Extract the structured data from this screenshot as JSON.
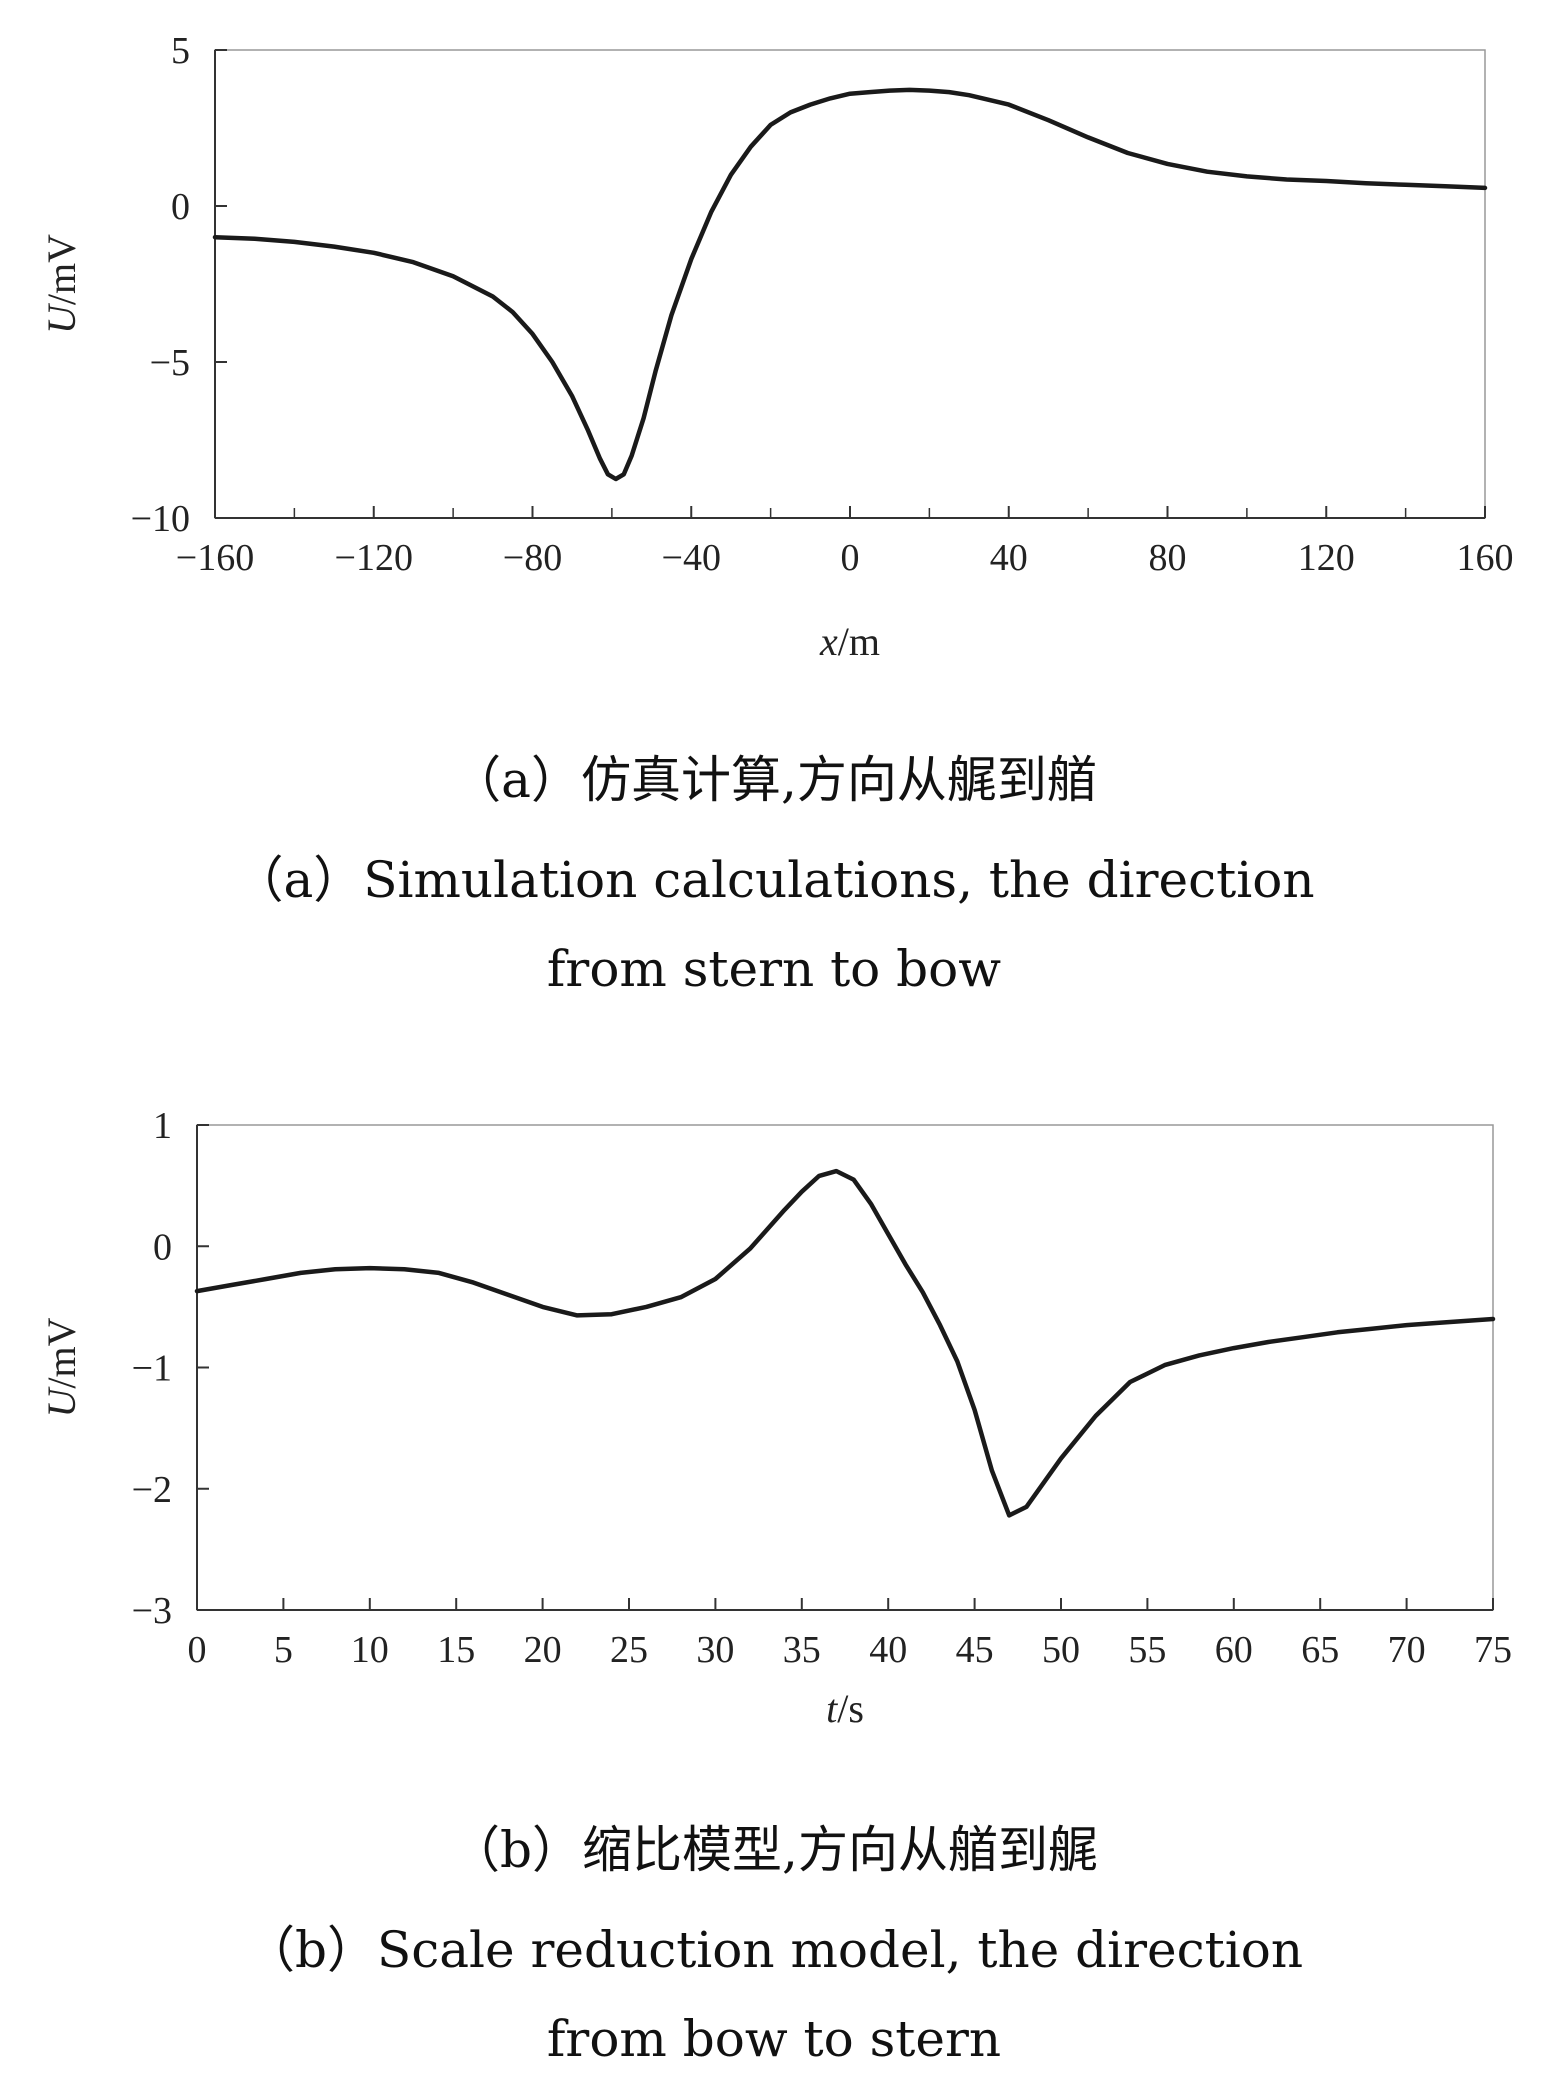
{
  "chart_data": [
    {
      "type": "line",
      "xlabel": "x/m",
      "ylabel": "U/mV",
      "xlim": [
        -160,
        160
      ],
      "ylim": [
        -10,
        5
      ],
      "xticks": [
        -160,
        -120,
        -80,
        -40,
        0,
        40,
        80,
        120,
        160
      ],
      "xtick_labels": [
        "−160",
        "−120",
        "−80",
        "−40",
        "0",
        "40",
        "80",
        "120",
        "160"
      ],
      "yticks": [
        5,
        0,
        -5,
        -10
      ],
      "ytick_labels": [
        "5",
        "0",
        "−5",
        "−10"
      ],
      "grid": false,
      "series": [
        {
          "x": [
            -160,
            -150,
            -140,
            -130,
            -120,
            -110,
            -100,
            -90,
            -85,
            -80,
            -75,
            -70,
            -66,
            -63,
            -61,
            -59,
            -57,
            -55,
            -52,
            -49,
            -45,
            -40,
            -35,
            -30,
            -25,
            -20,
            -15,
            -10,
            -5,
            0,
            5,
            10,
            15,
            20,
            25,
            30,
            40,
            50,
            60,
            70,
            80,
            90,
            100,
            110,
            120,
            130,
            140,
            150,
            160
          ],
          "y": [
            -1.0,
            -1.05,
            -1.15,
            -1.3,
            -1.5,
            -1.8,
            -2.25,
            -2.9,
            -3.4,
            -4.1,
            -5.0,
            -6.1,
            -7.2,
            -8.1,
            -8.6,
            -8.75,
            -8.6,
            -8.0,
            -6.8,
            -5.3,
            -3.5,
            -1.7,
            -0.2,
            1.0,
            1.9,
            2.6,
            3.0,
            3.25,
            3.45,
            3.6,
            3.65,
            3.7,
            3.72,
            3.7,
            3.65,
            3.55,
            3.25,
            2.75,
            2.2,
            1.7,
            1.35,
            1.1,
            0.95,
            0.85,
            0.8,
            0.73,
            0.68,
            0.63,
            0.58
          ]
        }
      ]
    },
    {
      "type": "line",
      "xlabel": "t/s",
      "ylabel": "U/mV",
      "xlim": [
        0,
        75
      ],
      "ylim": [
        -3,
        1
      ],
      "xticks": [
        0,
        5,
        10,
        15,
        20,
        25,
        30,
        35,
        40,
        45,
        50,
        55,
        60,
        65,
        70,
        75
      ],
      "xtick_labels": [
        "0",
        "5",
        "10",
        "15",
        "20",
        "25",
        "30",
        "35",
        "40",
        "45",
        "50",
        "55",
        "60",
        "65",
        "70",
        "75"
      ],
      "yticks": [
        1,
        0,
        -1,
        -2,
        -3
      ],
      "ytick_labels": [
        "1",
        "0",
        "−1",
        "−2",
        "−3"
      ],
      "grid": false,
      "series": [
        {
          "x": [
            0,
            2,
            4,
            6,
            8,
            10,
            12,
            14,
            16,
            18,
            20,
            22,
            24,
            26,
            28,
            30,
            32,
            34,
            35,
            36,
            37,
            38,
            39,
            40,
            41,
            42,
            43,
            44,
            45,
            46,
            47,
            48,
            49,
            50,
            52,
            54,
            56,
            58,
            60,
            62,
            64,
            66,
            68,
            70,
            72,
            75
          ],
          "y": [
            -0.37,
            -0.32,
            -0.27,
            -0.22,
            -0.19,
            -0.18,
            -0.19,
            -0.22,
            -0.3,
            -0.4,
            -0.5,
            -0.57,
            -0.56,
            -0.5,
            -0.42,
            -0.27,
            -0.02,
            0.3,
            0.45,
            0.58,
            0.62,
            0.55,
            0.35,
            0.1,
            -0.15,
            -0.38,
            -0.65,
            -0.95,
            -1.35,
            -1.85,
            -2.22,
            -2.15,
            -1.95,
            -1.75,
            -1.4,
            -1.12,
            -0.98,
            -0.9,
            -0.84,
            -0.79,
            -0.75,
            -0.71,
            -0.68,
            -0.65,
            -0.63,
            -0.6
          ]
        }
      ]
    }
  ],
  "captions": {
    "a_cn": "（a）仿真计算,方向从艉到艏",
    "a_en_line1": "（a）Simulation calculations, the direction",
    "a_en_line2": "from stern to bow",
    "b_cn": "（b）缩比模型,方向从艏到艉",
    "b_en_line1": "（b）Scale reduction model, the direction",
    "b_en_line2": "from bow to stern"
  },
  "colors": {
    "line": "#1a1a1a",
    "frame": "#999999",
    "axis": "#333333"
  }
}
